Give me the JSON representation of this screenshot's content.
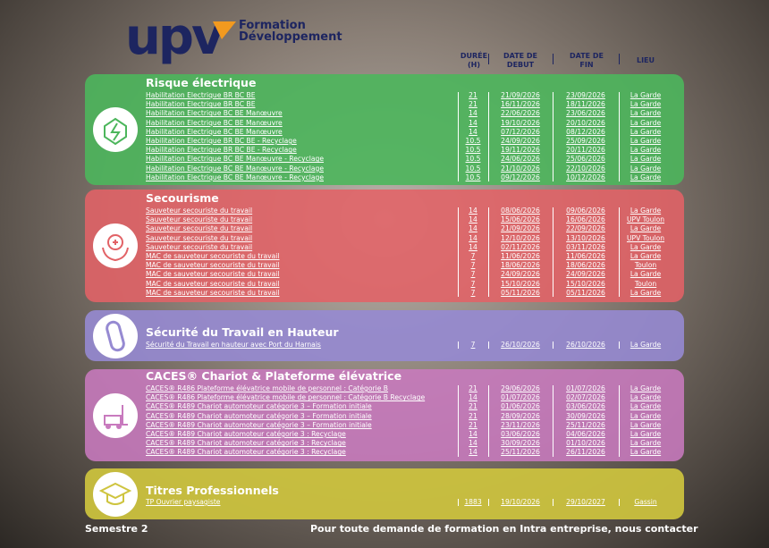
{
  "header": {
    "logo": {
      "brand": "upv",
      "line1": "Formation",
      "line2": "Développement"
    },
    "columns": [
      "DURÉE (H)",
      "DATE DE DEBUT",
      "DATE DE FIN",
      "LIEU"
    ]
  },
  "sections": [
    {
      "title": "Risque électrique",
      "rows": [
        [
          "Habilitation Electrique BR BC BE",
          "21",
          "21/09/2026",
          "23/09/2026",
          "La Garde"
        ],
        [
          "Habilitation Electrique BR BC BE",
          "21",
          "16/11/2026",
          "18/11/2026",
          "La Garde"
        ],
        [
          "Habilitation Electrique BC BE Manœuvre",
          "14",
          "22/06/2026",
          "23/06/2026",
          "La Garde"
        ],
        [
          "Habilitation Electrique BC BE Manœuvre",
          "14",
          "19/10/2026",
          "20/10/2026",
          "La Garde"
        ],
        [
          "Habilitation Electrique BC BE Manœuvre",
          "14",
          "07/12/2026",
          "08/12/2026",
          "La Garde"
        ],
        [
          "Habilitation Electrique BR BC BE - Recyclage",
          "10.5",
          "24/09/2026",
          "25/09/2026",
          "La Garde"
        ],
        [
          "Habilitation Electrique BR BC BE - Recyclage",
          "10.5",
          "19/11/2026",
          "20/11/2026",
          "La Garde"
        ],
        [
          "Habilitation Electrique BC BE Manœuvre - Recyclage",
          "10.5",
          "24/06/2026",
          "25/06/2026",
          "La Garde"
        ],
        [
          "Habilitation Electrique BC BE Manœuvre - Recyclage",
          "10.5",
          "21/10/2026",
          "22/10/2026",
          "La Garde"
        ],
        [
          "Habilitation Electrique BC BE Manœuvre - Recyclage",
          "10.5",
          "09/12/2026",
          "10/12/2026",
          "La Garde"
        ]
      ]
    },
    {
      "title": "Secourisme",
      "rows": [
        [
          "Sauveteur secouriste du travail",
          "14",
          "08/06/2026",
          "09/06/2026",
          "La Garde"
        ],
        [
          "Sauveteur secouriste du travail",
          "14",
          "15/06/2026",
          "16/06/2026",
          "UPV Toulon"
        ],
        [
          "Sauveteur secouriste du travail",
          "14",
          "21/09/2026",
          "22/09/2026",
          "La Garde"
        ],
        [
          "Sauveteur secouriste du travail",
          "14",
          "12/10/2026",
          "13/10/2026",
          "UPV Toulon"
        ],
        [
          "Sauveteur secouriste du travail",
          "14",
          "02/11/2026",
          "03/11/2026",
          "La Garde"
        ],
        [
          "MAC de sauveteur secouriste du travail",
          "7",
          "11/06/2026",
          "11/06/2026",
          "La Garde"
        ],
        [
          "MAC de sauveteur secouriste du travail",
          "7",
          "18/06/2026",
          "18/06/2026",
          "Toulon"
        ],
        [
          "MAC de sauveteur secouriste du travail",
          "7",
          "24/09/2026",
          "24/09/2026",
          "La Garde"
        ],
        [
          "MAC de sauveteur secouriste du travail",
          "7",
          "15/10/2026",
          "15/10/2026",
          "Toulon"
        ],
        [
          "MAC de sauveteur secouriste du travail",
          "7",
          "05/11/2026",
          "05/11/2026",
          "La Garde"
        ]
      ]
    },
    {
      "title": "Sécurité du Travail en Hauteur",
      "rows": [
        [
          "Sécurité du Travail en hauteur avec Port du Harnais",
          "7",
          "26/10/2026",
          "26/10/2026",
          "La Garde"
        ]
      ]
    },
    {
      "title": "CACES® Chariot & Plateforme élévatrice",
      "rows": [
        [
          "CACES® R486 Plateforme élévatrice mobile de personnel : Catégorie B",
          "21",
          "29/06/2026",
          "01/07/2026",
          "La Garde"
        ],
        [
          "CACES® R486 Plateforme élévatrice mobile de personnel : Catégorie B Recyclage",
          "14",
          "01/07/2026",
          "02/07/2026",
          "La Garde"
        ],
        [
          "CACES® R489 Chariot automoteur catégorie 3 – Formation initiale",
          "21",
          "01/06/2026",
          "03/06/2026",
          "La Garde"
        ],
        [
          "CACES® R489 Chariot automoteur catégorie 3 – Formation initiale",
          "21",
          "28/09/2026",
          "30/09/2026",
          "La Garde"
        ],
        [
          "CACES® R489 Chariot automoteur catégorie 3 – Formation initiale",
          "21",
          "23/11/2026",
          "25/11/2026",
          "La Garde"
        ],
        [
          "CACES® R489 Chariot automoteur catégorie 3 : Recyclage",
          "14",
          "03/06/2026",
          "04/06/2026",
          "La Garde"
        ],
        [
          "CACES® R489 Chariot automoteur catégorie 3 : Recyclage",
          "14",
          "30/09/2026",
          "01/10/2026",
          "La Garde"
        ],
        [
          "CACES® R489 Chariot automoteur catégorie 3 : Recyclage",
          "14",
          "25/11/2026",
          "26/11/2026",
          "La Garde"
        ]
      ]
    },
    {
      "title": "Titres Professionnels",
      "rows": [
        [
          "TP Ouvrier paysagiste",
          "1883",
          "19/10/2026",
          "29/10/2027",
          "Gassin"
        ]
      ]
    }
  ],
  "footer": {
    "left": "Semestre 2",
    "right": "Pour toute demande de formation en Intra entreprise, nous contacter"
  }
}
